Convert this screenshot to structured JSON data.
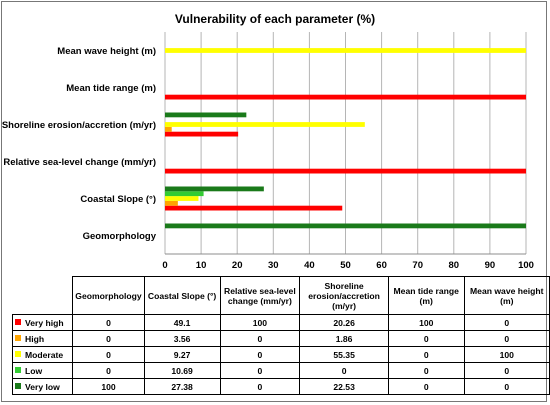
{
  "chart_data": {
    "type": "bar",
    "orientation": "horizontal",
    "title": "Vulnerability of each parameter (%)",
    "categories": [
      "Geomorphology",
      "Coastal Slope (°)",
      "Relative sea-level change (mm/yr)",
      "Shoreline erosion/accretion (m/yr)",
      "Mean tide range (m)",
      "Mean wave height (m)"
    ],
    "table_headers": [
      "Geomorphology",
      "Coastal Slope (°)",
      "Relative sea-level change (mm/yr)",
      "Shoreline erosion/accretion (m/yr)",
      "Mean tide range (m)",
      "Mean wave height (m)"
    ],
    "series": [
      {
        "name": "Very high",
        "color": "#ff0000",
        "values": [
          0,
          49.1,
          100,
          20.26,
          100,
          0
        ],
        "labels": [
          "0",
          "49.1",
          "100",
          "20.26",
          "100",
          "0"
        ]
      },
      {
        "name": "High",
        "color": "#ffa500",
        "values": [
          0,
          3.56,
          0,
          1.86,
          0,
          0
        ],
        "labels": [
          "0",
          "3.56",
          "0",
          "1.86",
          "0",
          "0"
        ]
      },
      {
        "name": "Moderate",
        "color": "#ffff00",
        "values": [
          0,
          9.27,
          0,
          55.35,
          0,
          100
        ],
        "labels": [
          "0",
          "9.27",
          "0",
          "55.35",
          "0",
          "100"
        ]
      },
      {
        "name": "Low",
        "color": "#33cc33",
        "values": [
          0,
          10.69,
          0,
          0,
          0,
          0
        ],
        "labels": [
          "0",
          "10.69",
          "0",
          "0",
          "0",
          "0"
        ]
      },
      {
        "name": "Very low",
        "color": "#1a7a1a",
        "values": [
          100,
          27.38,
          0,
          22.53,
          0,
          0
        ],
        "labels": [
          "100",
          "27.38",
          "0",
          "22.53",
          "0",
          "0"
        ]
      }
    ],
    "xlim": [
      0,
      100
    ],
    "xticks": [
      "0",
      "10",
      "20",
      "30",
      "40",
      "50",
      "60",
      "70",
      "80",
      "90",
      "100"
    ],
    "grid": true,
    "legend": "data-table-below"
  }
}
